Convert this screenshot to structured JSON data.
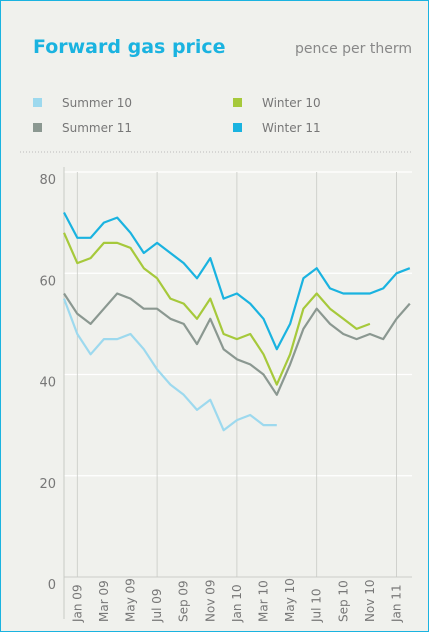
{
  "chart_data": {
    "type": "line",
    "title": "Forward gas price",
    "subtitle": "pence per therm",
    "categories": [
      null,
      "Jan 09",
      null,
      "Mar 09",
      null,
      "May 09",
      null,
      "Jul 09",
      null,
      "Sep 09",
      null,
      "Nov 09",
      null,
      "Jan 10",
      null,
      "Mar 10",
      null,
      "May 10",
      null,
      "Jul 10",
      null,
      "Sep 10",
      null,
      "Nov 10",
      null,
      "Jan 11",
      null
    ],
    "series": [
      {
        "name": "Summer 10",
        "color": "#9dd9ee",
        "values": [
          55,
          48,
          44,
          47,
          47,
          48,
          45,
          41,
          38,
          36,
          33,
          35,
          29,
          31,
          32,
          30,
          30,
          null,
          null,
          null,
          null,
          null,
          null,
          null,
          null,
          null,
          null
        ]
      },
      {
        "name": "Winter 10",
        "color": "#a6c93b",
        "values": [
          68,
          62,
          63,
          66,
          66,
          65,
          61,
          59,
          55,
          54,
          51,
          55,
          48,
          47,
          48,
          44,
          38,
          44,
          53,
          56,
          53,
          51,
          49,
          50,
          null,
          null,
          null
        ]
      },
      {
        "name": "Summer 11",
        "color": "#8b9891",
        "values": [
          56,
          52,
          50,
          53,
          56,
          55,
          53,
          53,
          51,
          50,
          46,
          51,
          45,
          43,
          42,
          40,
          36,
          42,
          49,
          53,
          50,
          48,
          47,
          48,
          47,
          51,
          54
        ]
      },
      {
        "name": "Winter 11",
        "color": "#1ab3e0",
        "values": [
          72,
          67,
          67,
          70,
          71,
          68,
          64,
          66,
          64,
          62,
          59,
          63,
          55,
          56,
          54,
          51,
          45,
          50,
          59,
          61,
          57,
          56,
          56,
          56,
          57,
          60,
          61
        ]
      }
    ],
    "ylim": [
      0,
      80
    ],
    "yticks": [
      0,
      20,
      40,
      60,
      80
    ],
    "grid": true
  }
}
